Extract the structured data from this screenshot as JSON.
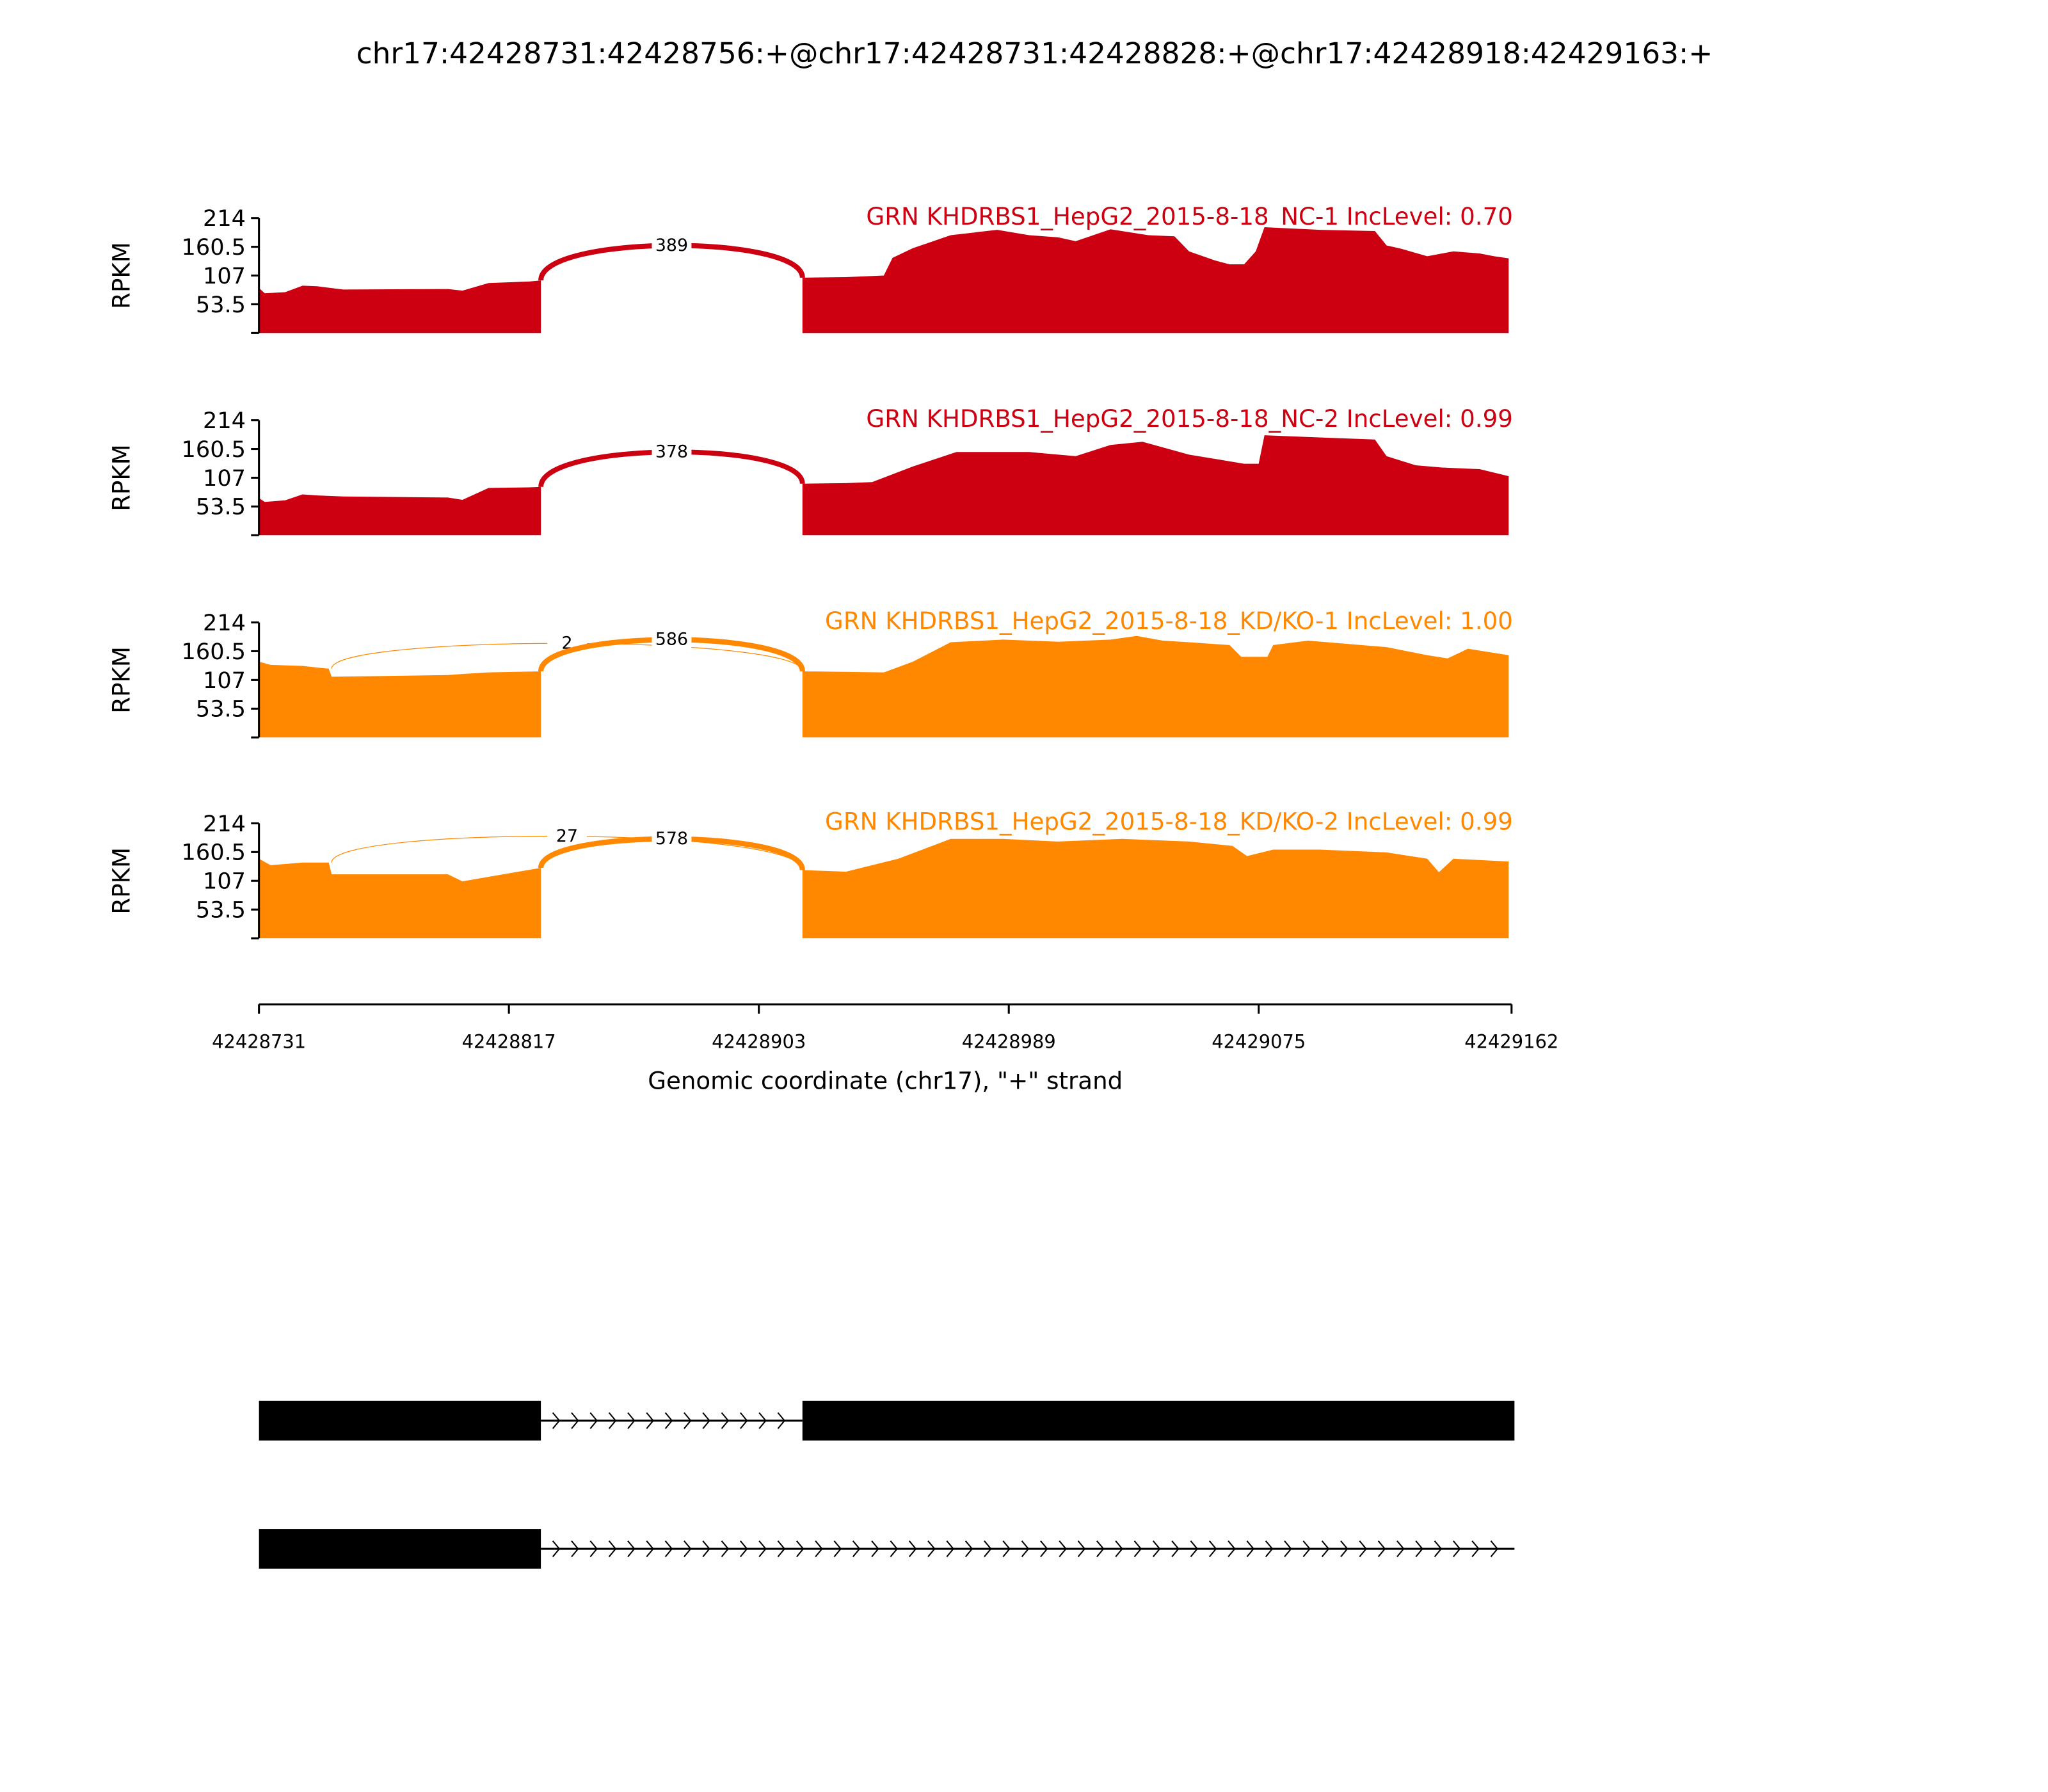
{
  "chart_data": {
    "type": "area",
    "title": "chr17:42428731:42428756:+@chr17:42428731:42428828:+@chr17:42428918:42429163:+",
    "xlabel": "Genomic coordinate (chr17), \"+\" strand",
    "ylabel": "RPKM",
    "xlim": [
      42428731,
      42429162
    ],
    "xticks": [
      "42428731",
      "42428817",
      "42428903",
      "42428989",
      "42429075",
      "42429162"
    ],
    "ylim": [
      0,
      214
    ],
    "yticks": [
      0,
      53.5,
      107,
      160.5,
      214
    ],
    "ytick_labels": [
      "",
      "53.5",
      "107",
      "160.5",
      "214"
    ],
    "grid": false,
    "panels": [
      {
        "name": "GRN KHDRBS1_HepG2_2015-8-18_NC-1 IncLevel: 0.70",
        "color": "#cc0011",
        "coverage": [
          [
            [
              42428731,
              84
            ],
            [
              42428733,
              74
            ],
            [
              42428740,
              76
            ],
            [
              42428746,
              88
            ],
            [
              42428751,
              87
            ],
            [
              42428760,
              81
            ],
            [
              42428796,
              82
            ],
            [
              42428801,
              79
            ],
            [
              42428810,
              93
            ],
            [
              42428824,
              96
            ],
            [
              42428828,
              98
            ]
          ],
          [
            [
              42428918,
              103
            ],
            [
              42428933,
              104
            ],
            [
              42428946,
              107
            ],
            [
              42428949,
              140
            ],
            [
              42428956,
              158
            ],
            [
              42428969,
              182
            ],
            [
              42428985,
              192
            ],
            [
              42428996,
              182
            ],
            [
              42429006,
              178
            ],
            [
              42429012,
              171
            ],
            [
              42429024,
              193
            ],
            [
              42429037,
              182
            ],
            [
              42429046,
              180
            ],
            [
              42429051,
              152
            ],
            [
              42429060,
              135
            ],
            [
              42429065,
              128
            ],
            [
              42429070,
              128
            ],
            [
              42429074,
              152
            ],
            [
              42429077,
              197
            ],
            [
              42429096,
              192
            ],
            [
              42429115,
              190
            ],
            [
              42429119,
              163
            ],
            [
              42429124,
              157
            ],
            [
              42429133,
              143
            ],
            [
              42429142,
              152
            ],
            [
              42429151,
              148
            ],
            [
              42429156,
              143
            ],
            [
              42429161,
              139
            ]
          ]
        ],
        "junctions": [
          {
            "start": 42428828,
            "end": 42428918,
            "count": "389",
            "apex": 163
          }
        ]
      },
      {
        "name": "GRN KHDRBS1_HepG2_2015-8-18_NC-2 IncLevel: 0.99",
        "color": "#cc0011",
        "coverage": [
          [
            [
              42428731,
              69
            ],
            [
              42428733,
              62
            ],
            [
              42428740,
              65
            ],
            [
              42428746,
              76
            ],
            [
              42428751,
              74
            ],
            [
              42428760,
              72
            ],
            [
              42428796,
              70
            ],
            [
              42428801,
              66
            ],
            [
              42428810,
              88
            ],
            [
              42428824,
              89
            ],
            [
              42428828,
              90
            ]
          ],
          [
            [
              42428918,
              96
            ],
            [
              42428933,
              97
            ],
            [
              42428942,
              99
            ],
            [
              42428956,
              128
            ],
            [
              42428971,
              155
            ],
            [
              42428996,
              155
            ],
            [
              42429012,
              147
            ],
            [
              42429024,
              168
            ],
            [
              42429035,
              174
            ],
            [
              42429051,
              150
            ],
            [
              42429070,
              133
            ],
            [
              42429075,
              133
            ],
            [
              42429077,
              186
            ],
            [
              42429115,
              178
            ],
            [
              42429119,
              147
            ],
            [
              42429129,
              130
            ],
            [
              42429138,
              126
            ],
            [
              42429151,
              123
            ],
            [
              42429161,
              110
            ]
          ]
        ],
        "junctions": [
          {
            "start": 42428828,
            "end": 42428918,
            "count": "378",
            "apex": 155
          }
        ]
      },
      {
        "name": "GRN KHDRBS1_HepG2_2015-8-18_KD/KO-1 IncLevel: 1.00",
        "color": "#ff8800",
        "coverage": [
          [
            [
              42428731,
              141
            ],
            [
              42428735,
              135
            ],
            [
              42428746,
              133
            ],
            [
              42428751,
              130
            ],
            [
              42428755,
              128
            ],
            [
              42428756,
              113
            ],
            [
              42428796,
              116
            ],
            [
              42428801,
              118
            ],
            [
              42428810,
              121
            ],
            [
              42428828,
              123
            ]
          ],
          [
            [
              42428918,
              123
            ],
            [
              42428946,
              121
            ],
            [
              42428956,
              141
            ],
            [
              42428969,
              177
            ],
            [
              42428987,
              182
            ],
            [
              42429006,
              178
            ],
            [
              42429024,
              182
            ],
            [
              42429033,
              189
            ],
            [
              42429042,
              180
            ],
            [
              42429051,
              177
            ],
            [
              42429065,
              172
            ],
            [
              42429069,
              150
            ],
            [
              42429078,
              150
            ],
            [
              42429080,
              172
            ],
            [
              42429092,
              180
            ],
            [
              42429119,
              168
            ],
            [
              42429133,
              153
            ],
            [
              42429140,
              147
            ],
            [
              42429147,
              165
            ],
            [
              42429161,
              153
            ]
          ]
        ],
        "junctions": [
          {
            "start": 42428756,
            "end": 42428918,
            "count": "2",
            "apex": 175
          },
          {
            "start": 42428828,
            "end": 42428918,
            "count": "586",
            "apex": 182
          }
        ]
      },
      {
        "name": "GRN KHDRBS1_HepG2_2015-8-18_KD/KO-2 IncLevel: 0.99",
        "color": "#ff8800",
        "coverage": [
          [
            [
              42428731,
              148
            ],
            [
              42428735,
              136
            ],
            [
              42428746,
              141
            ],
            [
              42428755,
              141
            ],
            [
              42428756,
              119
            ],
            [
              42428796,
              119
            ],
            [
              42428801,
              106
            ],
            [
              42428815,
              119
            ],
            [
              42428828,
              131
            ]
          ],
          [
            [
              42428918,
              127
            ],
            [
              42428933,
              124
            ],
            [
              42428951,
              148
            ],
            [
              42428969,
              185
            ],
            [
              42428987,
              185
            ],
            [
              42429006,
              180
            ],
            [
              42429028,
              185
            ],
            [
              42429051,
              180
            ],
            [
              42429066,
              172
            ],
            [
              42429071,
              153
            ],
            [
              42429080,
              165
            ],
            [
              42429096,
              165
            ],
            [
              42429119,
              160
            ],
            [
              42429133,
              148
            ],
            [
              42429137,
              123
            ],
            [
              42429142,
              148
            ],
            [
              42429161,
              143
            ]
          ]
        ],
        "junctions": [
          {
            "start": 42428756,
            "end": 42428918,
            "count": "27",
            "apex": 190
          },
          {
            "start": 42428828,
            "end": 42428918,
            "count": "578",
            "apex": 185
          }
        ]
      }
    ],
    "gene_models": [
      {
        "exons": [
          [
            42428731,
            42428828
          ],
          [
            42428918,
            42429163
          ]
        ],
        "strand": "+"
      },
      {
        "exons": [
          [
            42428731,
            42428828
          ]
        ],
        "line_end": 42429163,
        "strand": "+"
      }
    ]
  }
}
